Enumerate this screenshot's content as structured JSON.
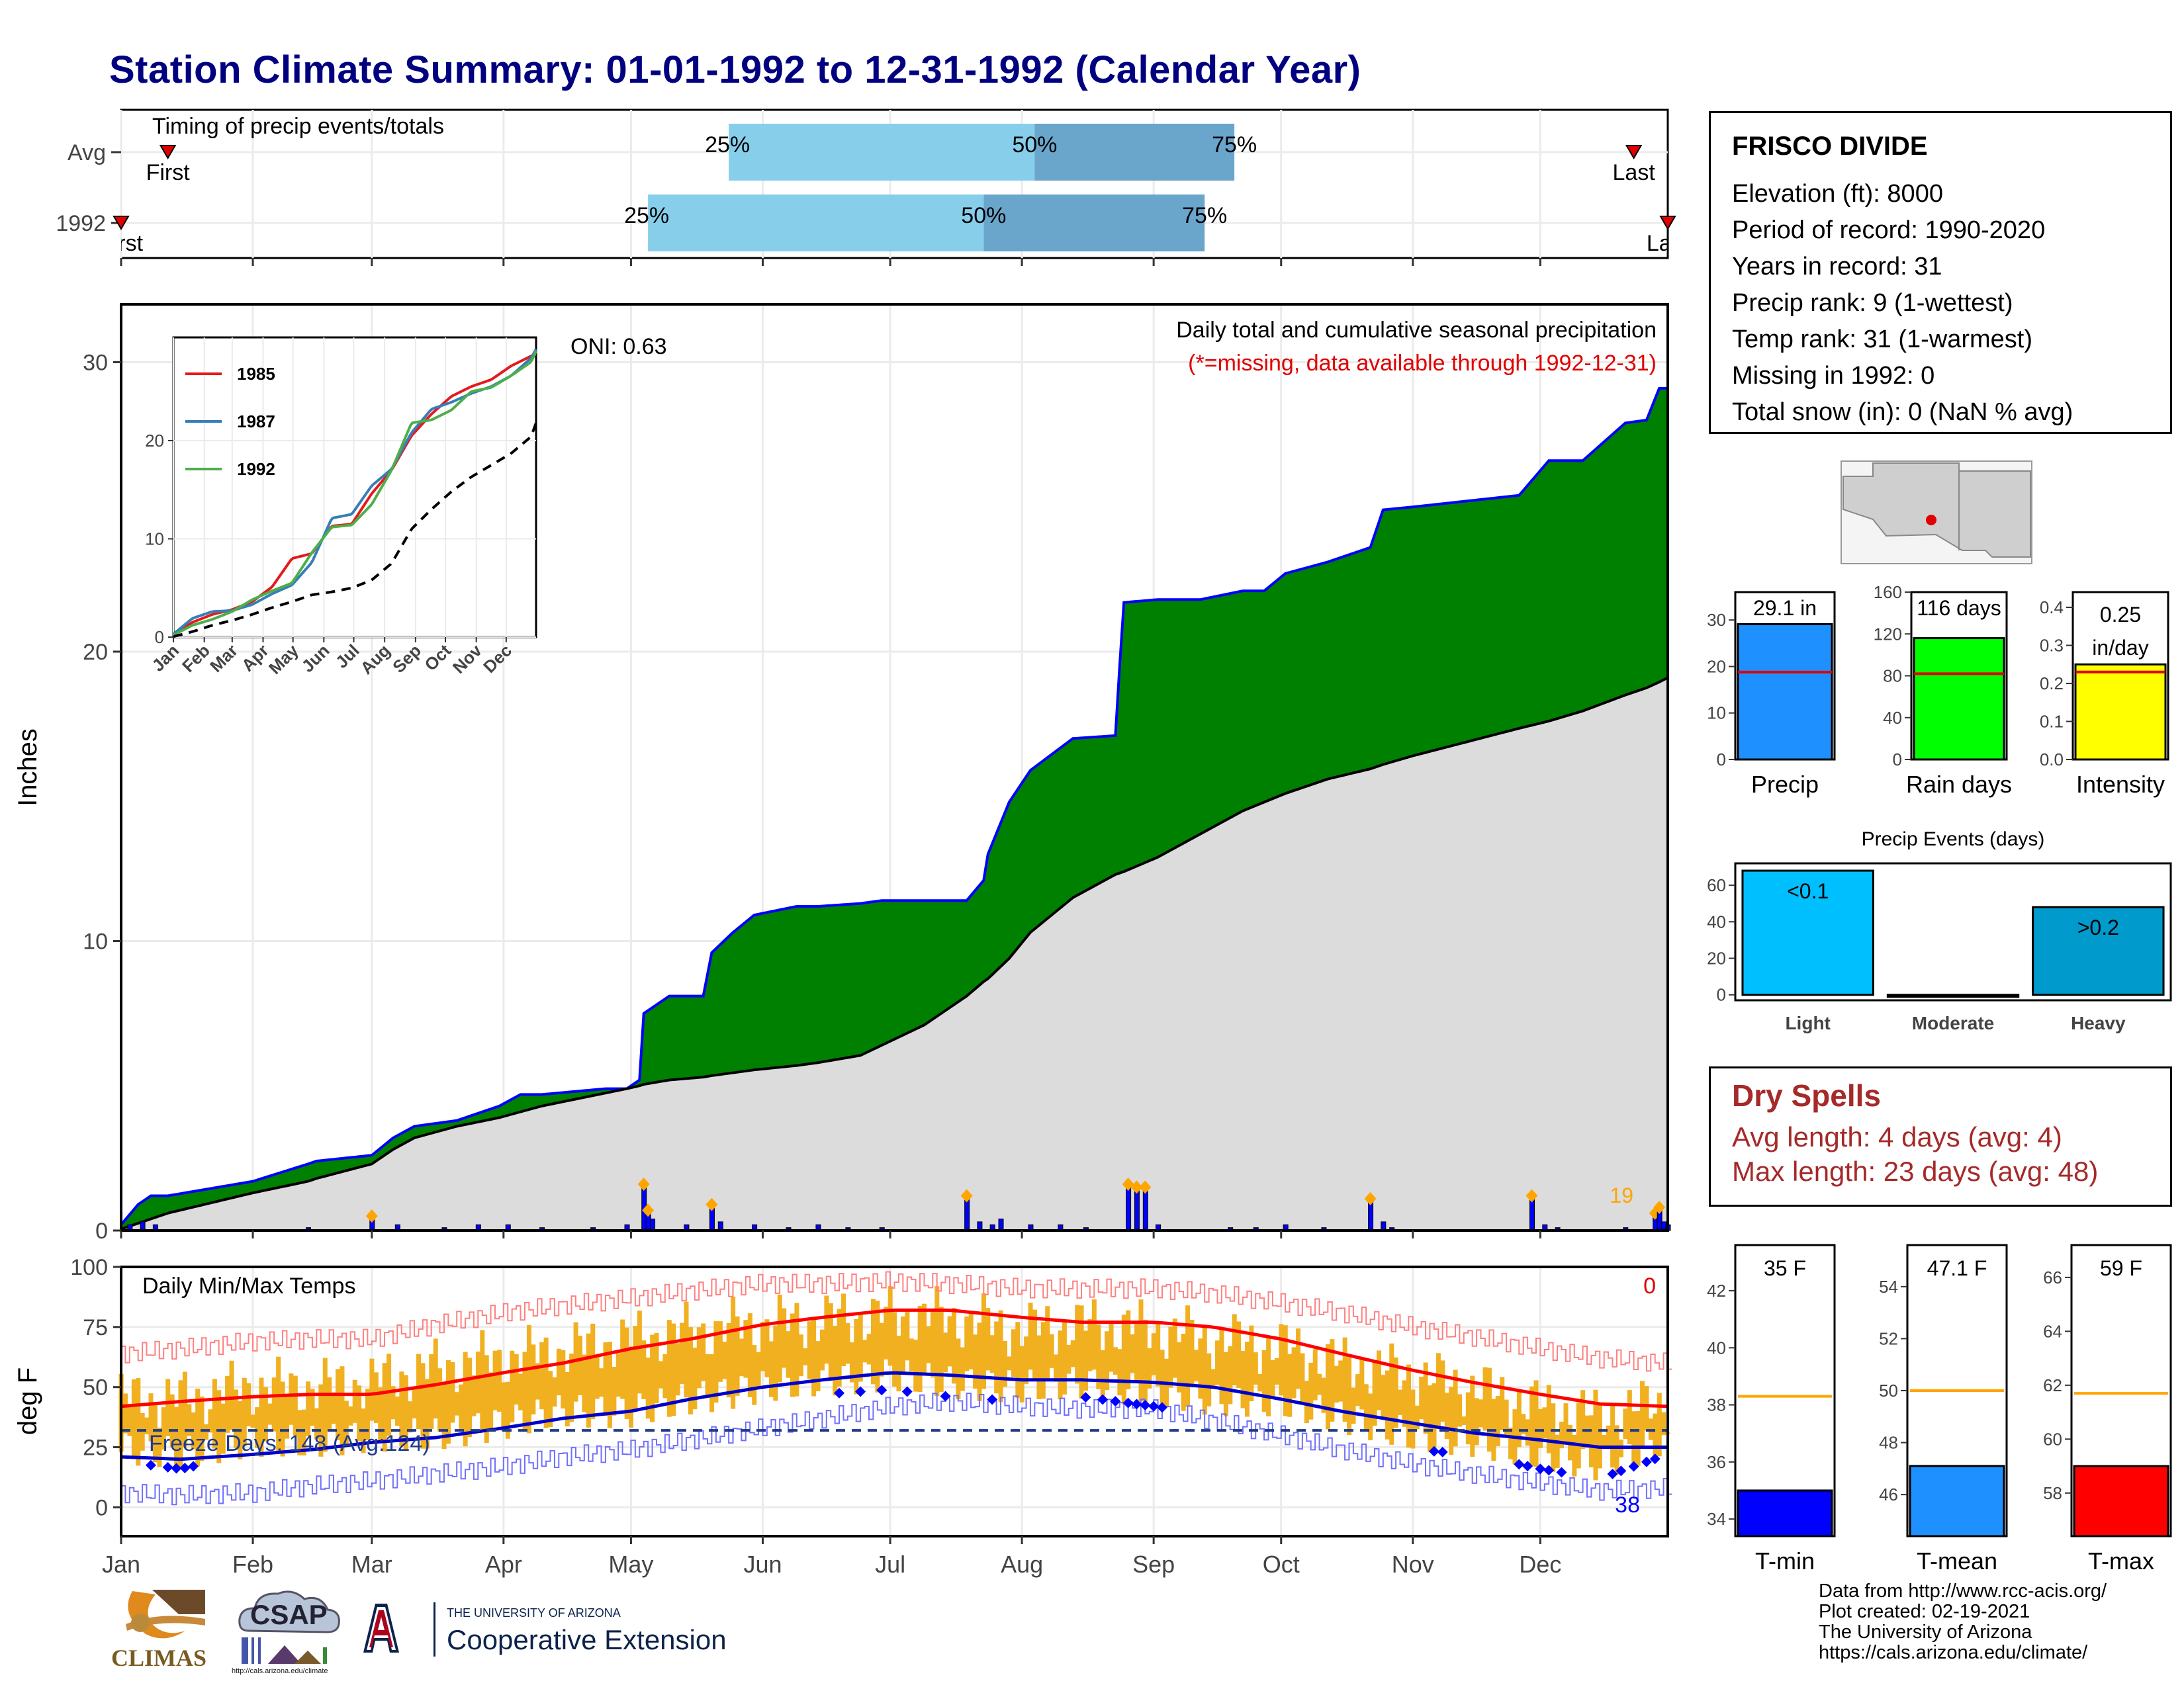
{
  "title": "Station Climate Summary: 01-01-1992 to 12-31-1992 (Calendar Year)",
  "timing_panel": {
    "label": "Timing of precip events/totals",
    "rows": [
      {
        "name": "Avg",
        "first_label": "First",
        "last_label": "Last",
        "p25_label": "25%",
        "p50_label": "50%",
        "p75_label": "75%",
        "first_doy": 12,
        "p25_doy": 144,
        "p50_doy": 216,
        "p75_doy": 263,
        "last_doy": 357
      },
      {
        "name": "1992",
        "first_label": "First",
        "last_label": "Last",
        "p25_label": "25%",
        "p50_label": "50%",
        "p75_label": "75%",
        "first_doy": 1,
        "p25_doy": 125,
        "p50_doy": 204,
        "p75_doy": 256,
        "last_doy": 365
      }
    ]
  },
  "station_info": {
    "station_name": "FRISCO DIVIDE",
    "lines": [
      "Elevation (ft): 8000",
      "Period of record: 1990-2020",
      "Years in record: 31",
      "Precip rank: 9 (1-wettest)",
      "Temp rank: 31 (1-warmest)",
      "Missing in 1992: 0",
      "Total snow (in): 0 (NaN % avg)"
    ]
  },
  "dry_spells": {
    "heading": "Dry Spells",
    "avg_line": "Avg length: 4 days (avg: 4)",
    "max_line": "Max length: 23 days (avg: 48)"
  },
  "footer": {
    "lines": [
      "Data from http://www.rcc-acis.org/",
      "Plot created: 02-19-2021",
      "The University of Arizona",
      "https://cals.arizona.edu/climate/"
    ]
  },
  "logos": {
    "climas": "CLIMAS",
    "csap": "CSAP",
    "csap_url": "http://cals.arizona.edu/climate",
    "ua_small": "THE UNIVERSITY OF ARIZONA",
    "ua_big": "Cooperative Extension"
  },
  "colors": {
    "title": "#000080",
    "cumulative_1992_fill": "#008000",
    "cumulative_outline": "#0000ff",
    "avg_fill": "#dcdcdc",
    "daily_bar": "#0000ff",
    "big_event_marker": "#ffa500",
    "temp_range": "#f0b020",
    "tmax_smooth": "#ff0000",
    "tmin_smooth": "#0000cc",
    "timing_light": "#87ceeb",
    "timing_dark": "#6aa5cc",
    "precip_bar": "#1e90ff",
    "raindays_bar": "#00ff00",
    "intensity_bar": "#ffff00",
    "light_event": "#00bfff",
    "heavy_event": "#009acd",
    "tmin_bar": "#0000ff",
    "tmean_bar": "#1e90ff",
    "tmax_bar": "#ff0000",
    "dry_spell_text": "#a52a2a"
  },
  "chart_data": [
    {
      "id": "cumulative_precip",
      "type": "area",
      "title": "Daily total and cumulative seasonal precipitation",
      "subtitle": "(*=missing, data available through 1992-12-31)",
      "annotation": "ONI: 0.63",
      "ylabel": "Inches",
      "ylim": [
        0,
        32
      ],
      "yticks": [
        0,
        10,
        20,
        30
      ],
      "months": [
        "Jan",
        "Feb",
        "Mar",
        "Apr",
        "May",
        "Jun",
        "Jul",
        "Aug",
        "Sep",
        "Oct",
        "Nov",
        "Dec"
      ],
      "big_event_label": "19",
      "x_doy": [
        1,
        5,
        8,
        12,
        32,
        45,
        47,
        60,
        65,
        70,
        80,
        90,
        95,
        100,
        115,
        120,
        123,
        124,
        130,
        138,
        140,
        145,
        150,
        160,
        165,
        175,
        180,
        190,
        200,
        204,
        205,
        210,
        215,
        225,
        235,
        236,
        237,
        245,
        255,
        265,
        270,
        275,
        285,
        295,
        298,
        305,
        330,
        337,
        345,
        355,
        360,
        363,
        365
      ],
      "series": [
        {
          "name": "1992",
          "values": [
            0.2,
            0.9,
            1.2,
            1.2,
            1.7,
            2.3,
            2.4,
            2.6,
            3.2,
            3.6,
            3.8,
            4.3,
            4.7,
            4.7,
            4.9,
            4.9,
            5.2,
            7.5,
            8.1,
            8.1,
            9.6,
            10.3,
            10.9,
            11.2,
            11.2,
            11.3,
            11.4,
            11.4,
            11.4,
            12.1,
            13.0,
            14.8,
            15.9,
            17.0,
            17.1,
            19.5,
            21.7,
            21.8,
            21.8,
            22.1,
            22.1,
            22.7,
            23.1,
            23.6,
            24.9,
            25.0,
            25.4,
            26.6,
            26.6,
            27.9,
            28.0,
            29.1,
            29.1
          ]
        },
        {
          "name": "Avg",
          "values": [
            0.05,
            0.25,
            0.4,
            0.6,
            1.3,
            1.7,
            1.8,
            2.3,
            2.8,
            3.2,
            3.6,
            3.9,
            4.1,
            4.3,
            4.75,
            4.9,
            5.0,
            5.05,
            5.2,
            5.3,
            5.35,
            5.45,
            5.55,
            5.7,
            5.8,
            6.05,
            6.4,
            7.1,
            8.1,
            8.6,
            8.7,
            9.4,
            10.3,
            11.5,
            12.3,
            12.35,
            12.4,
            12.9,
            13.7,
            14.5,
            14.8,
            15.1,
            15.6,
            15.95,
            16.1,
            16.4,
            17.35,
            17.6,
            17.95,
            18.5,
            18.75,
            18.95,
            19.1
          ]
        }
      ],
      "daily_events": {
        "doy": [
          3,
          6,
          9,
          45,
          60,
          66,
          77,
          85,
          92,
          100,
          112,
          120,
          124,
          125,
          126,
          134,
          140,
          142,
          150,
          158,
          165,
          172,
          180,
          200,
          203,
          206,
          208,
          215,
          222,
          228,
          238,
          240,
          242,
          245,
          262,
          268,
          275,
          284,
          295,
          298,
          300,
          333,
          336,
          339,
          355,
          362,
          363,
          364,
          365
        ],
        "values": [
          0.2,
          0.3,
          0.2,
          0.1,
          0.5,
          0.2,
          0.1,
          0.2,
          0.2,
          0.1,
          0.1,
          0.2,
          1.6,
          0.7,
          0.4,
          0.2,
          0.9,
          0.3,
          0.2,
          0.1,
          0.2,
          0.1,
          0.1,
          1.2,
          0.3,
          0.2,
          0.4,
          0.2,
          0.2,
          0.1,
          1.6,
          1.5,
          1.5,
          0.2,
          0.1,
          0.1,
          0.2,
          0.1,
          1.1,
          0.3,
          0.1,
          1.2,
          0.2,
          0.1,
          0.1,
          0.6,
          0.8,
          0.3,
          0.2
        ]
      }
    },
    {
      "id": "inset_cumulative",
      "type": "line",
      "xlabel": "",
      "ylabel": "",
      "ylim": [
        0,
        30.5
      ],
      "yticks": [
        0,
        10,
        20
      ],
      "months": [
        "Jan",
        "Feb",
        "Mar",
        "Apr",
        "May",
        "Jun",
        "Jul",
        "Aug",
        "Sep",
        "Oct",
        "Nov",
        "Dec"
      ],
      "x_doy": [
        1,
        20,
        40,
        60,
        80,
        100,
        120,
        140,
        160,
        180,
        200,
        220,
        240,
        260,
        280,
        300,
        320,
        340,
        360,
        365
      ],
      "series": [
        {
          "name": "1985",
          "values": [
            0.2,
            1.5,
            2.3,
            2.8,
            3.6,
            5.1,
            8.0,
            8.5,
            11.3,
            11.5,
            14.6,
            17.0,
            20.5,
            22.7,
            24.5,
            25.5,
            26.2,
            27.6,
            28.6,
            28.8
          ]
        },
        {
          "name": "1987",
          "values": [
            0.3,
            1.9,
            2.6,
            2.7,
            3.3,
            4.4,
            5.3,
            7.6,
            12.1,
            12.5,
            15.4,
            17.1,
            20.8,
            23.2,
            23.9,
            24.8,
            25.5,
            26.6,
            28.4,
            29.3
          ]
        },
        {
          "name": "1992",
          "values": [
            0.2,
            1.2,
            1.8,
            2.6,
            3.8,
            4.7,
            5.5,
            8.6,
            11.2,
            11.4,
            13.5,
            17.0,
            21.8,
            22.1,
            23.1,
            25.0,
            25.4,
            26.6,
            28.0,
            29.1
          ]
        },
        {
          "name": "",
          "values": [
            0.05,
            0.55,
            1.2,
            1.7,
            2.3,
            3.0,
            3.6,
            4.3,
            4.6,
            5.0,
            5.8,
            7.5,
            11.0,
            13.0,
            14.8,
            16.3,
            17.5,
            18.7,
            20.4,
            21.8
          ]
        }
      ]
    },
    {
      "id": "daily_temps",
      "type": "line",
      "title": "Daily Min/Max Temps",
      "ylabel": "deg F",
      "ylim": [
        -12,
        100
      ],
      "yticks": [
        0,
        25,
        50,
        75,
        100
      ],
      "months": [
        "Jan",
        "Feb",
        "Mar",
        "Apr",
        "May",
        "Jun",
        "Jul",
        "Aug",
        "Sep",
        "Oct",
        "Nov",
        "Dec"
      ],
      "freeze_line": 32,
      "freeze_label": "Freeze Days: 148 (Avg:124)",
      "top_right_count": "0",
      "bottom_right_count": "38",
      "x_doy": [
        1,
        15,
        32,
        46,
        60,
        75,
        91,
        105,
        121,
        135,
        152,
        166,
        182,
        196,
        213,
        227,
        244,
        258,
        274,
        288,
        305,
        319,
        335,
        349,
        365
      ],
      "series": [
        {
          "name": "",
          "values": [
            42,
            44,
            46,
            47,
            47,
            51,
            56,
            60,
            66,
            70,
            76,
            79,
            82,
            82,
            79,
            77,
            77,
            75,
            70,
            64,
            57,
            52,
            47,
            43,
            42
          ]
        },
        {
          "name": "",
          "values": [
            21,
            20,
            22,
            24,
            27,
            29,
            33,
            37,
            40,
            45,
            50,
            53,
            56,
            55,
            53,
            53,
            52,
            50,
            45,
            40,
            35,
            31,
            28,
            25,
            25
          ]
        },
        {
          "name": "",
          "values": [
            45,
            45,
            50,
            50,
            52,
            58,
            62,
            65,
            70,
            73,
            76,
            78,
            80,
            79,
            74,
            76,
            74,
            70,
            67,
            60,
            55,
            50,
            42,
            38,
            44
          ]
        },
        {
          "name": "",
          "values": [
            25,
            22,
            28,
            27,
            30,
            30,
            35,
            40,
            40,
            45,
            50,
            53,
            55,
            52,
            50,
            52,
            48,
            45,
            44,
            38,
            30,
            28,
            22,
            18,
            28
          ]
        },
        {
          "name": "",
          "values": [
            64,
            66,
            69,
            70,
            70,
            76,
            81,
            84,
            87,
            90,
            93,
            93,
            94,
            93,
            91,
            91,
            91,
            89,
            85,
            81,
            75,
            71,
            66,
            62,
            60
          ]
        },
        {
          "name": "",
          "values": [
            6,
            5,
            6,
            9,
            11,
            14,
            17,
            21,
            24,
            28,
            33,
            37,
            42,
            44,
            42,
            41,
            41,
            36,
            30,
            24,
            18,
            14,
            10,
            7,
            8
          ]
        }
      ],
      "freeze_markers_doy": [
        8,
        12,
        14,
        16,
        18,
        170,
        175,
        180,
        186,
        195,
        206,
        228,
        232,
        235,
        238,
        240,
        242,
        244,
        246,
        310,
        312,
        330,
        332,
        335,
        337,
        340,
        352,
        354,
        357,
        360,
        362
      ]
    },
    {
      "id": "precip_total",
      "type": "bar",
      "categories": [
        "Precip"
      ],
      "values": [
        29.1
      ],
      "value_label": "29.1 in",
      "avg": 18.8,
      "ylim": [
        0,
        36
      ],
      "yticks": [
        0,
        10,
        20,
        30
      ]
    },
    {
      "id": "rain_days",
      "type": "bar",
      "categories": [
        "Rain days"
      ],
      "values": [
        116
      ],
      "value_label": "116 days",
      "avg": 82,
      "ylim": [
        0,
        160
      ],
      "yticks": [
        0,
        40,
        80,
        120,
        160
      ]
    },
    {
      "id": "intensity",
      "type": "bar",
      "categories": [
        "Intensity"
      ],
      "values": [
        0.25
      ],
      "value_label": "0.25",
      "value_unit": "in/day",
      "avg": 0.23,
      "ylim": [
        0,
        0.44
      ],
      "yticks": [
        0.0,
        0.1,
        0.2,
        0.3,
        0.4
      ]
    },
    {
      "id": "precip_events",
      "type": "bar",
      "title": "Precip Events (days)",
      "categories": [
        "Light",
        "Moderate",
        "Heavy"
      ],
      "values": [
        68,
        0,
        48
      ],
      "bar_labels": [
        "<0.1",
        "",
        ">0.2"
      ],
      "ylim": [
        -3,
        72
      ],
      "yticks": [
        0,
        20,
        40,
        60
      ]
    },
    {
      "id": "tmin",
      "type": "bar",
      "categories": [
        "T-min"
      ],
      "values": [
        35
      ],
      "value_label": "35 F",
      "avg": 38.3,
      "ylim": [
        33.4,
        43.6
      ],
      "yticks": [
        34,
        36,
        38,
        40,
        42
      ]
    },
    {
      "id": "tmean",
      "type": "bar",
      "categories": [
        "T-mean"
      ],
      "values": [
        47.1
      ],
      "value_label": "47.1 F",
      "avg": 50.0,
      "ylim": [
        44.4,
        55.6
      ],
      "yticks": [
        46,
        48,
        50,
        52,
        54
      ]
    },
    {
      "id": "tmax",
      "type": "bar",
      "categories": [
        "T-max"
      ],
      "values": [
        59
      ],
      "value_label": "59 F",
      "avg": 61.7,
      "ylim": [
        56.4,
        67.2
      ],
      "yticks": [
        58,
        60,
        62,
        64,
        66
      ]
    }
  ]
}
